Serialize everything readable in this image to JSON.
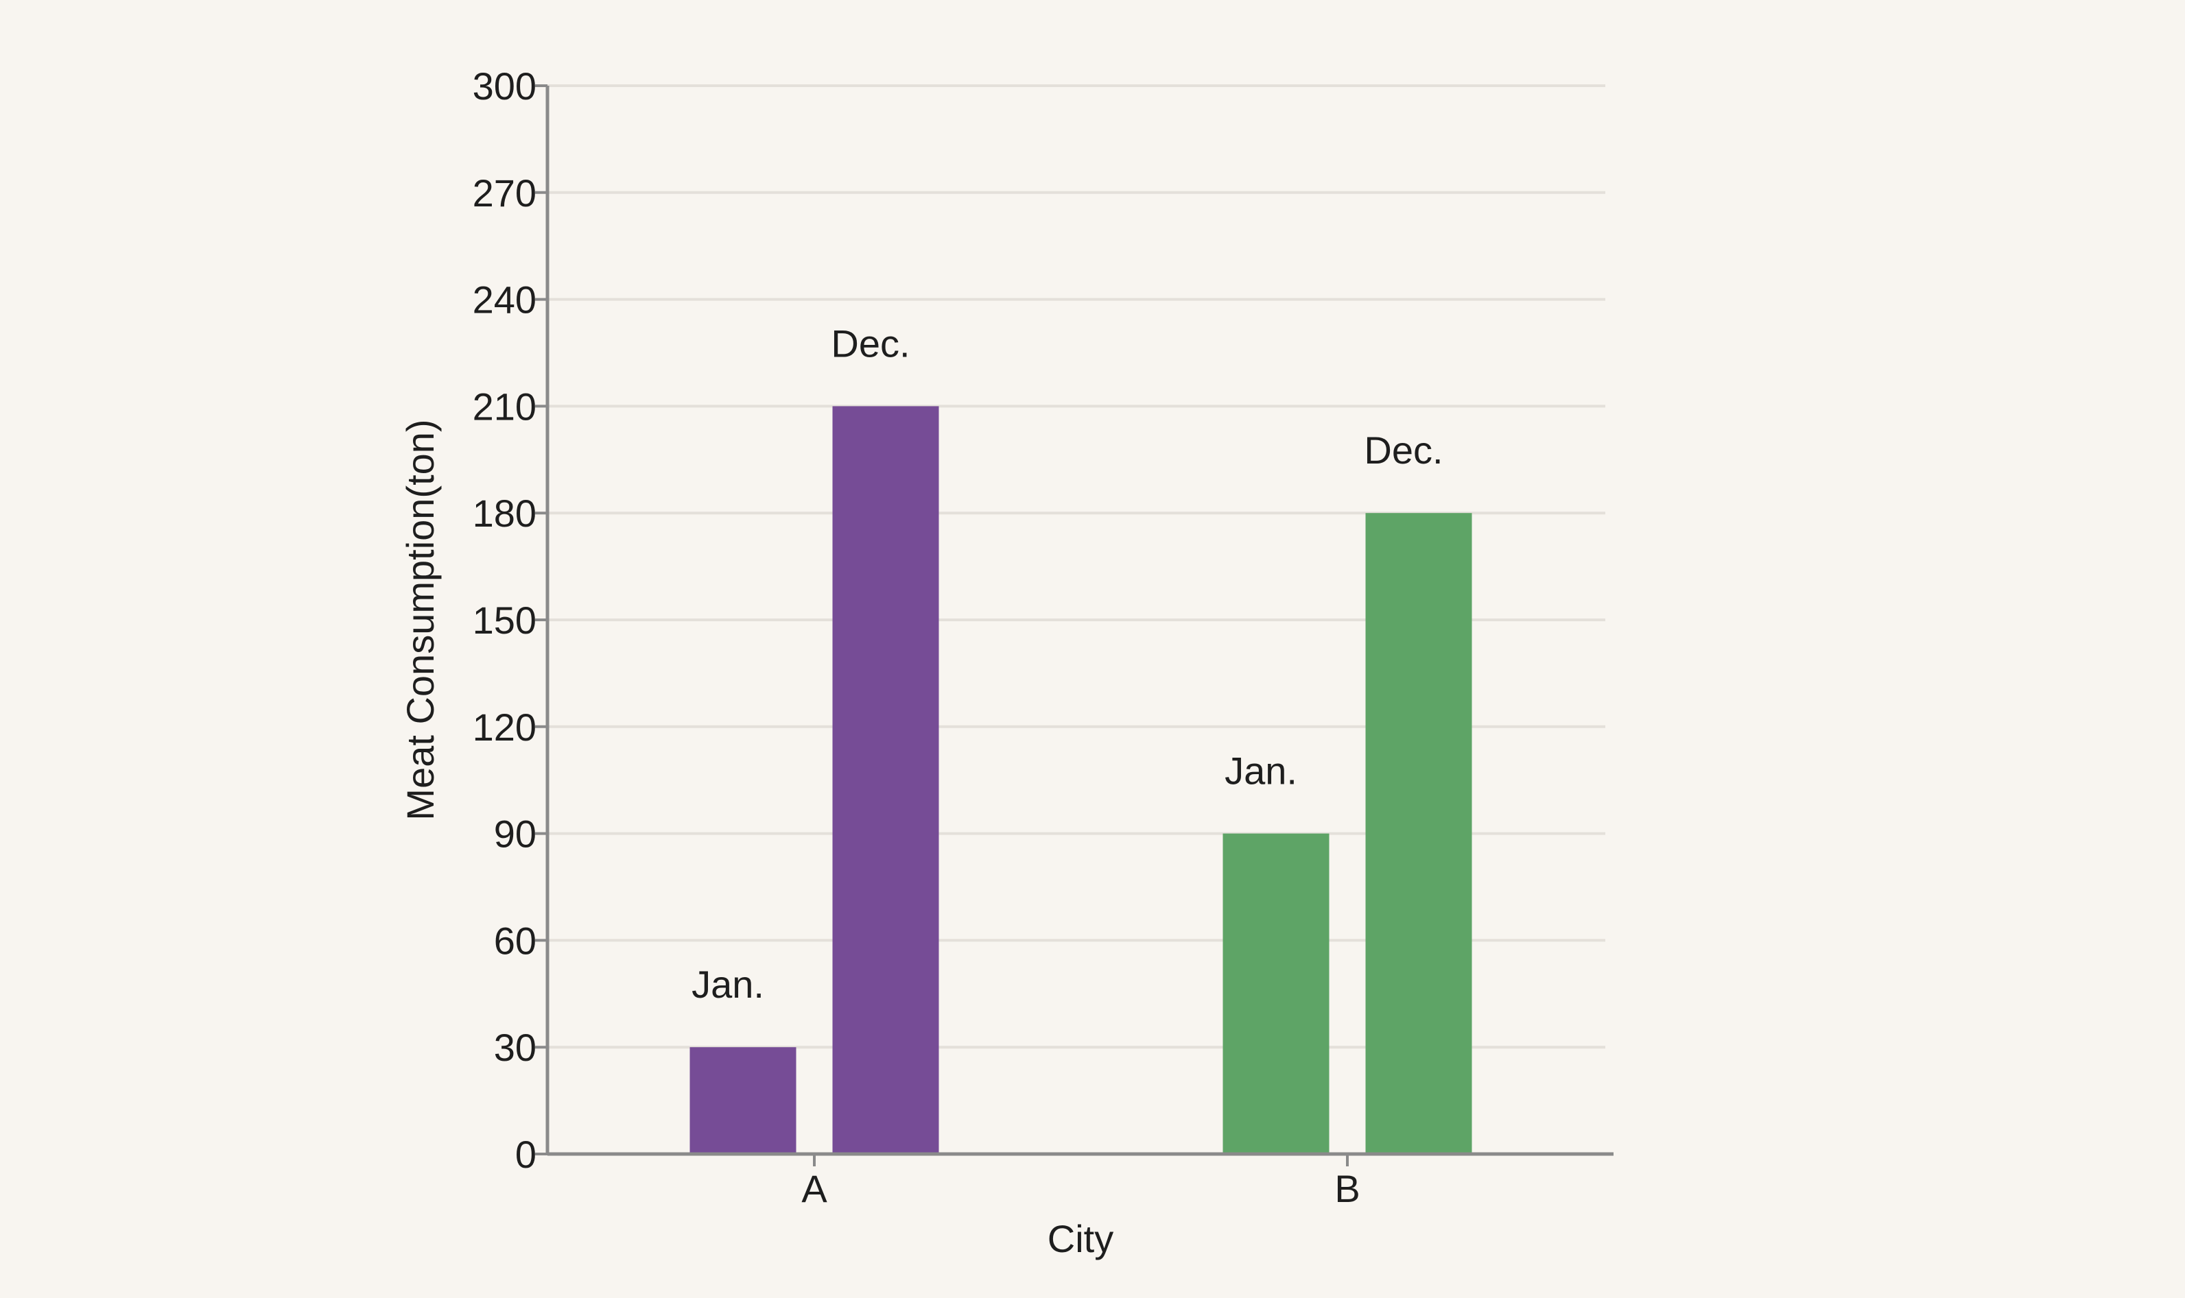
{
  "chart_data": {
    "type": "bar",
    "categories": [
      "A",
      "B"
    ],
    "bar_labels": [
      "Jan.",
      "Dec."
    ],
    "bars": [
      {
        "category": "A",
        "label": "Jan.",
        "value": 30,
        "color": "#764c96"
      },
      {
        "category": "A",
        "label": "Dec.",
        "value": 210,
        "color": "#764c96"
      },
      {
        "category": "B",
        "label": "Jan.",
        "value": 90,
        "color": "#5ea466"
      },
      {
        "category": "B",
        "label": "Dec.",
        "value": 180,
        "color": "#5ea466"
      }
    ],
    "category_colors": {
      "A": "#764c96",
      "B": "#5ea466"
    },
    "title": "",
    "xlabel": "City",
    "ylabel": "Meat Consumption(ton)",
    "ylim": [
      0,
      300
    ],
    "yticks": [
      0,
      30,
      60,
      90,
      120,
      150,
      180,
      210,
      240,
      270,
      300
    ],
    "grid": true,
    "legend": "none"
  }
}
